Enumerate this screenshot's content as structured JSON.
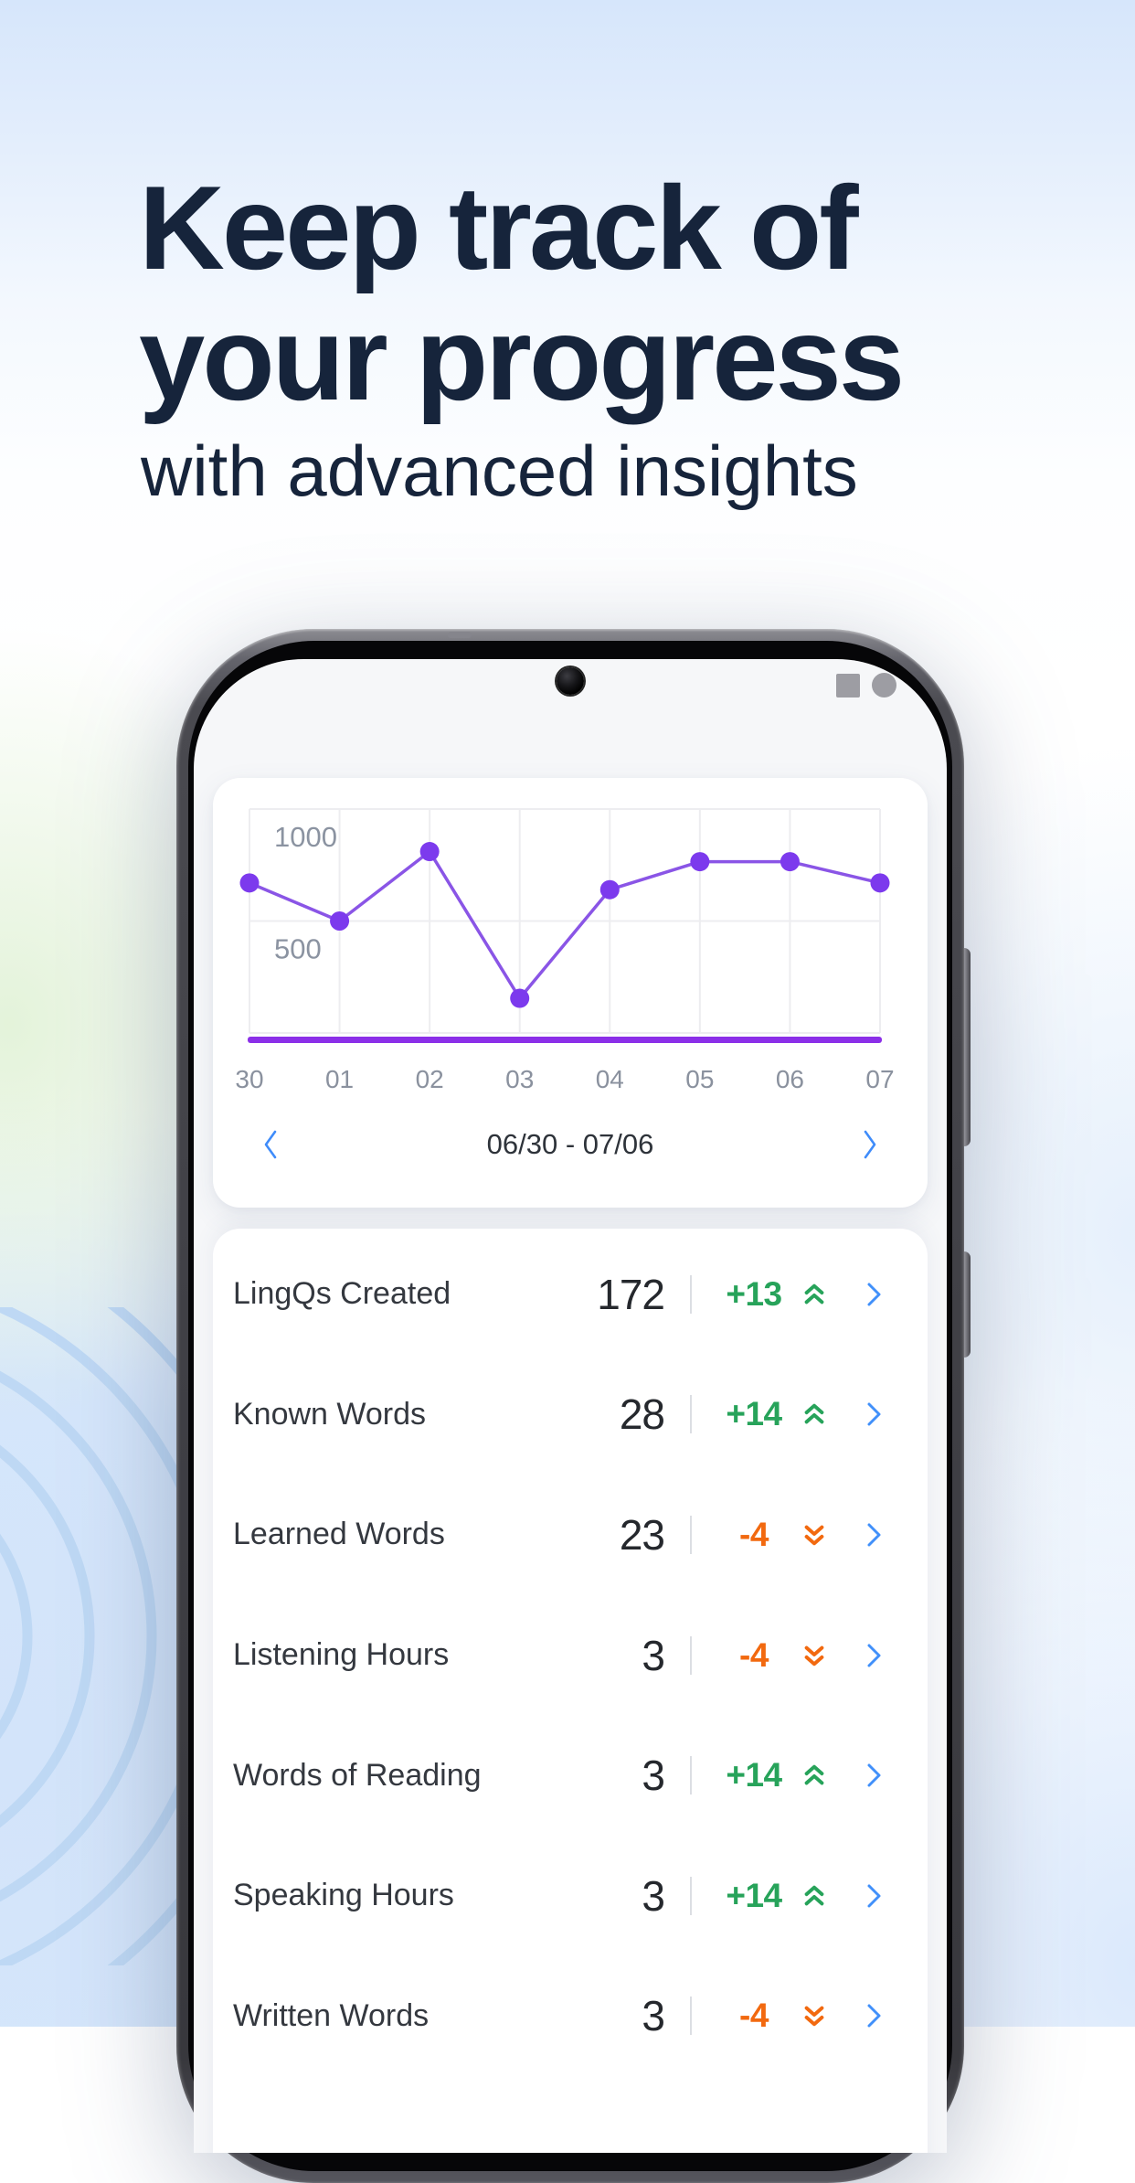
{
  "hero": {
    "title_line1": "Keep track of",
    "title_line2": "your progress",
    "subtitle": "with advanced insights"
  },
  "phone": {
    "status_icons": [
      "square-icon",
      "circle-icon",
      "triangle-icon"
    ]
  },
  "chart_data": {
    "type": "line",
    "title": "",
    "categories": [
      "30",
      "01",
      "02",
      "03",
      "04",
      "05",
      "06",
      "07"
    ],
    "values": [
      670,
      500,
      810,
      155,
      640,
      765,
      765,
      670
    ],
    "xlabel": "",
    "ylabel": "",
    "ylim": [
      0,
      1000
    ],
    "yticks": [
      1000,
      500
    ],
    "grid": true,
    "legend": "none",
    "line_color": "#8a55e6",
    "point_color": "#7c3aed",
    "baseline_color": "#8b2fe8"
  },
  "date_nav": {
    "range_label": "06/30 - 07/06",
    "prev_icon": "chevron-left",
    "next_icon": "chevron-right"
  },
  "stats": {
    "rows": [
      {
        "label": "LingQs Created",
        "value": "172",
        "delta": "+13",
        "direction": "up"
      },
      {
        "label": "Known Words",
        "value": "28",
        "delta": "+14",
        "direction": "up"
      },
      {
        "label": "Learned Words",
        "value": "23",
        "delta": "-4",
        "direction": "down"
      },
      {
        "label": "Listening Hours",
        "value": "3",
        "delta": "-4",
        "direction": "down"
      },
      {
        "label": "Words of Reading",
        "value": "3",
        "delta": "+14",
        "direction": "up"
      },
      {
        "label": "Speaking Hours",
        "value": "3",
        "delta": "+14",
        "direction": "up"
      },
      {
        "label": "Written Words",
        "value": "3",
        "delta": "-4",
        "direction": "down"
      }
    ]
  },
  "colors": {
    "headline_navy": "#16243b",
    "positive_green": "#27a35a",
    "negative_orange": "#f2690f",
    "link_blue": "#4190fa",
    "chart_purple": "#8a55e6",
    "background_blue": "#d6e6fb"
  }
}
